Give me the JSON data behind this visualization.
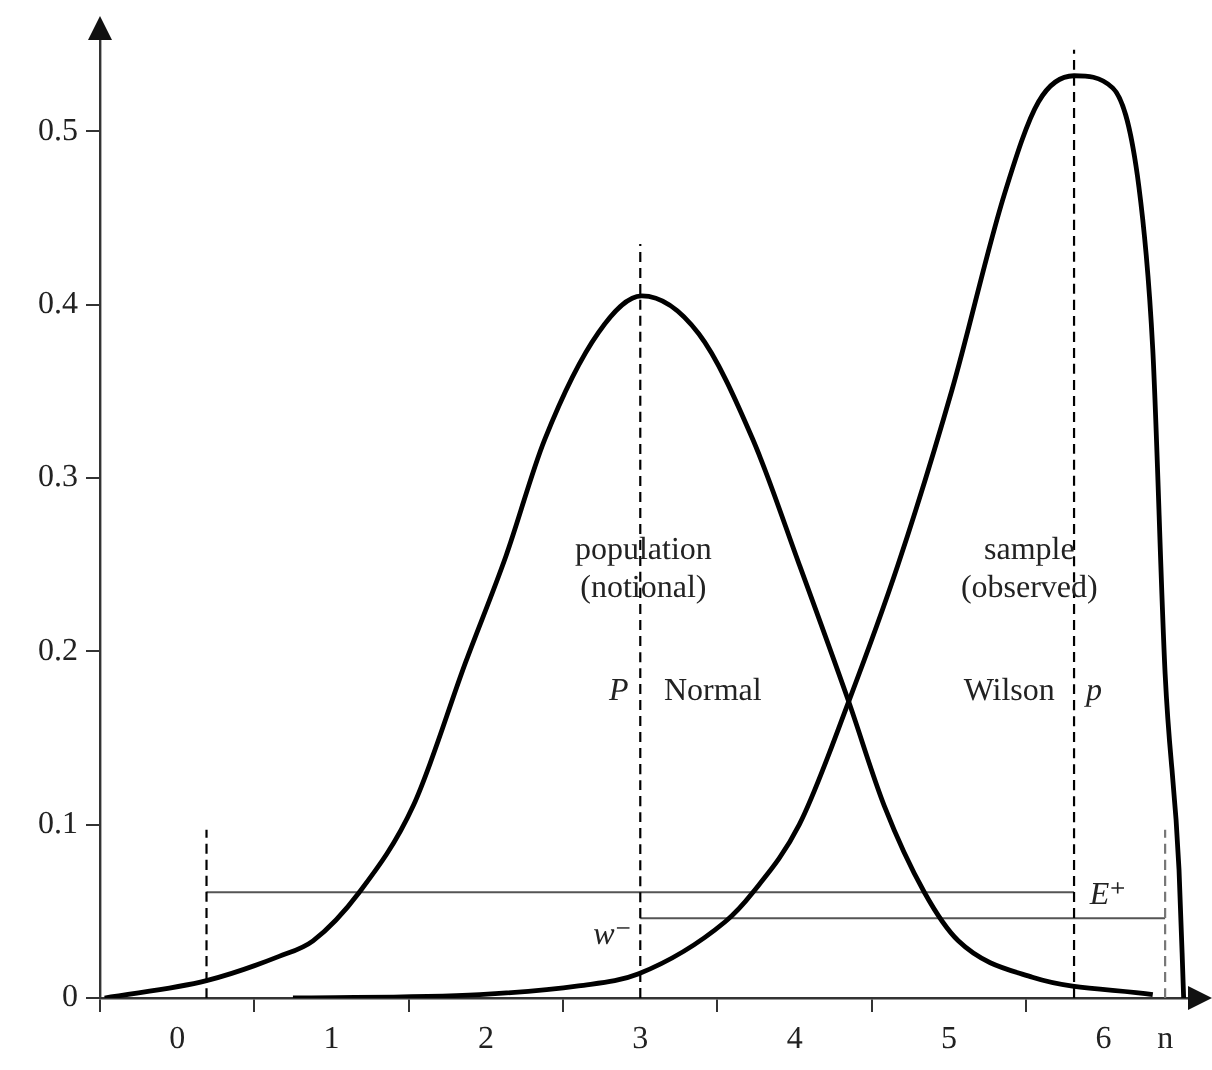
{
  "chart_data": {
    "type": "line",
    "marker": "none",
    "legend": false,
    "grid": false,
    "xlim": [
      -0.5,
      6.6
    ],
    "ylim": [
      0,
      0.56
    ],
    "xticks": [
      {
        "value": -0.5,
        "label": null
      },
      {
        "value": 0,
        "label": "0"
      },
      {
        "value": 0.5,
        "label": null
      },
      {
        "value": 1,
        "label": "1"
      },
      {
        "value": 1.5,
        "label": null
      },
      {
        "value": 2,
        "label": "2"
      },
      {
        "value": 2.5,
        "label": null
      },
      {
        "value": 3,
        "label": "3"
      },
      {
        "value": 3.5,
        "label": null
      },
      {
        "value": 4,
        "label": "4"
      },
      {
        "value": 4.5,
        "label": null
      },
      {
        "value": 5,
        "label": "5"
      },
      {
        "value": 5.5,
        "label": null
      },
      {
        "value": 6,
        "label": "6"
      },
      {
        "value": 6.4,
        "label": "n"
      }
    ],
    "yticks": [
      0,
      0.1,
      0.2,
      0.3,
      0.4,
      0.5
    ],
    "series": [
      {
        "type": "line",
        "color": "#000000",
        "line_style": "solid",
        "x": [
          -0.47,
          0.19,
          0.66,
          0.88,
          1.18,
          1.53,
          1.87,
          2.13,
          2.38,
          2.73,
          3.01,
          3.38,
          3.73,
          4.03,
          4.35,
          4.58,
          4.84,
          5.06,
          5.54,
          6.32
        ],
        "values": [
          0,
          0.01,
          0.024,
          0.033,
          0.061,
          0.111,
          0.194,
          0.255,
          0.322,
          0.384,
          0.405,
          0.383,
          0.322,
          0.25,
          0.171,
          0.111,
          0.061,
          0.033,
          0.012,
          0.002
        ]
      },
      {
        "type": "line",
        "color": "#000000",
        "line_style": "solid",
        "x": [
          0.75,
          1.96,
          2.6,
          2.99,
          3.55,
          3.73,
          4.03,
          4.35,
          4.67,
          5.02,
          5.36,
          5.58,
          5.81,
          6.06,
          6.23,
          6.32,
          6.4,
          6.49,
          6.52
        ],
        "values": [
          0,
          0.002,
          0.007,
          0.014,
          0.044,
          0.061,
          0.1,
          0.171,
          0.25,
          0.351,
          0.464,
          0.517,
          0.532,
          0.525,
          0.468,
          0.374,
          0.187,
          0.074,
          0
        ]
      },
      {
        "type": "line",
        "color": "#000000",
        "line_style": "dashed",
        "x": [
          0.19,
          0.19
        ],
        "values": [
          0,
          0.097
        ]
      },
      {
        "type": "line",
        "color": "#000000",
        "line_style": "dashed",
        "x": [
          3,
          3
        ],
        "values": [
          0,
          0.435
        ]
      },
      {
        "type": "line",
        "color": "#000000",
        "line_style": "dashed",
        "x": [
          5.81,
          5.81
        ],
        "values": [
          0,
          0.547
        ]
      },
      {
        "type": "line",
        "color": "#777777",
        "line_style": "dashed",
        "x": [
          6.4,
          6.4
        ],
        "values": [
          0,
          0.097
        ]
      },
      {
        "type": "line",
        "color": "#555555",
        "line_style": "solid",
        "x": [
          0.19,
          5.81
        ],
        "values": [
          0.061,
          0.061
        ]
      },
      {
        "type": "line",
        "color": "#555555",
        "line_style": "solid",
        "x": [
          3,
          6.4
        ],
        "values": [
          0.046,
          0.046
        ]
      }
    ],
    "annotations": [
      "population\n(notional)",
      "sample\n(observed)",
      "P",
      "Normal",
      "Wilson",
      "p",
      "E⁺",
      "w⁻"
    ]
  }
}
